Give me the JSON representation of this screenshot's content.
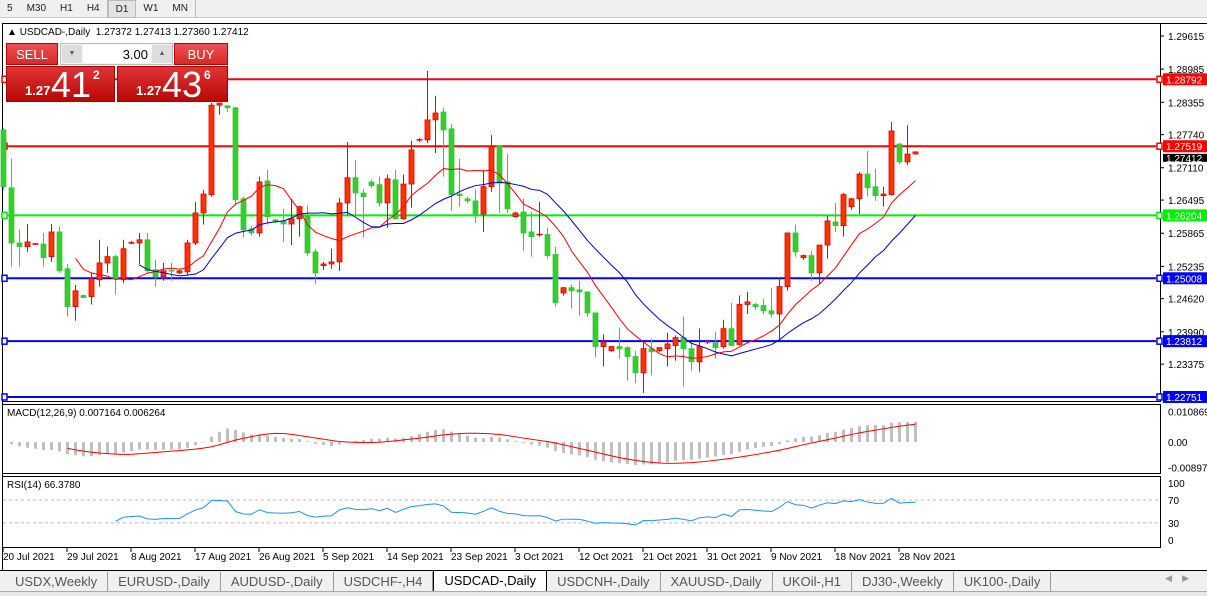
{
  "toolbar": {
    "timeframes": [
      "5",
      "M30",
      "H1",
      "H4",
      "D1",
      "W1",
      "MN"
    ],
    "active": "D1"
  },
  "chart": {
    "header": "USDCAD-,Daily  1.27372 1.27413 1.27360 1.27412",
    "trade": {
      "sell_label": "SELL",
      "buy_label": "BUY",
      "lot": "3.00",
      "sell": {
        "prefix": "1.27",
        "big": "41",
        "pip": "2"
      },
      "buy": {
        "prefix": "1.27",
        "big": "43",
        "pip": "6"
      }
    },
    "colors": {
      "up": "#ff3300",
      "down": "#33cc33",
      "ma_fast": "#ff0000",
      "ma_slow": "#0000cc",
      "rsi": "#1e90ff",
      "macd_hist": "#c0c0c0",
      "macd_signal": "#ff0000"
    }
  },
  "chart_data": {
    "type": "candlestick",
    "symbol": "USDCAD-",
    "timeframe": "Daily",
    "price_ticks": [
      "1.29615",
      "1.28985",
      "1.28355",
      "1.27740",
      "1.27110",
      "1.26495",
      "1.25865",
      "1.25235",
      "1.24620",
      "1.23990",
      "1.23375"
    ],
    "ylim": [
      1.2262,
      1.301
    ],
    "current_price": "1.27412",
    "levels": [
      {
        "price": "1.28792",
        "color": "#ff0000"
      },
      {
        "price": "1.27519",
        "color": "#ff0000"
      },
      {
        "price": "1.26204",
        "color": "#00ee00"
      },
      {
        "price": "1.25008",
        "color": "#0000ff"
      },
      {
        "price": "1.23812",
        "color": "#0000ff"
      },
      {
        "price": "1.22751",
        "color": "#0000ff"
      }
    ],
    "date_labels": [
      "20 Jul 2021",
      "29 Jul 2021",
      "8 Aug 2021",
      "17 Aug 2021",
      "26 Aug 2021",
      "5 Sep 2021",
      "14 Sep 2021",
      "23 Sep 2021",
      "3 Oct 2021",
      "12 Oct 2021",
      "21 Oct 2021",
      "31 Oct 2021",
      "9 Nov 2021",
      "18 Nov 2021",
      "28 Nov 2021"
    ],
    "ohlc": [
      [
        1.2783,
        1.2787,
        1.2669,
        1.2675
      ],
      [
        1.2673,
        1.2728,
        1.2523,
        1.2568
      ],
      [
        1.2568,
        1.2593,
        1.2523,
        1.2561
      ],
      [
        1.2561,
        1.2604,
        1.2551,
        1.257
      ],
      [
        1.2566,
        1.2568,
        1.2564,
        1.2566
      ],
      [
        1.2566,
        1.2587,
        1.2523,
        1.254
      ],
      [
        1.2542,
        1.2604,
        1.2532,
        1.2589
      ],
      [
        1.2589,
        1.2599,
        1.2511,
        1.2515
      ],
      [
        1.2519,
        1.2528,
        1.2428,
        1.2447
      ],
      [
        1.2447,
        1.2488,
        1.242,
        1.2477
      ],
      [
        1.2468,
        1.247,
        1.2464,
        1.2464
      ],
      [
        1.2466,
        1.2511,
        1.2451,
        1.25
      ],
      [
        1.2498,
        1.2574,
        1.2485,
        1.253
      ],
      [
        1.253,
        1.2561,
        1.2511,
        1.2542
      ],
      [
        1.2542,
        1.2545,
        1.247,
        1.25
      ],
      [
        1.2498,
        1.2574,
        1.2492,
        1.2557
      ],
      [
        1.2568,
        1.2572,
        1.2566,
        1.2568
      ],
      [
        1.2568,
        1.2587,
        1.2527,
        1.2574
      ],
      [
        1.2574,
        1.2587,
        1.2511,
        1.2515
      ],
      [
        1.2517,
        1.2536,
        1.2485,
        1.2504
      ],
      [
        1.2504,
        1.253,
        1.2496,
        1.2515
      ],
      [
        1.2515,
        1.253,
        1.2496,
        1.2513
      ],
      [
        1.2511,
        1.2517,
        1.2509,
        1.2515
      ],
      [
        1.2513,
        1.2574,
        1.2507,
        1.2568
      ],
      [
        1.2568,
        1.2646,
        1.2564,
        1.2625
      ],
      [
        1.2625,
        1.2669,
        1.2603,
        1.2661
      ],
      [
        1.266,
        1.2834,
        1.2656,
        1.283
      ],
      [
        1.283,
        1.2834,
        1.2812,
        1.2834
      ],
      [
        1.2829,
        1.2829,
        1.2817,
        1.2825
      ],
      [
        1.2825,
        1.2827,
        1.2639,
        1.265
      ],
      [
        1.2652,
        1.2656,
        1.2578,
        1.2593
      ],
      [
        1.2595,
        1.2601,
        1.2582,
        1.2587
      ],
      [
        1.2587,
        1.2694,
        1.258,
        1.2684
      ],
      [
        1.2686,
        1.2707,
        1.2603,
        1.2618
      ],
      [
        1.2612,
        1.2614,
        1.2606,
        1.2608
      ],
      [
        1.261,
        1.2633,
        1.257,
        1.2604
      ],
      [
        1.2604,
        1.2652,
        1.2564,
        1.2614
      ],
      [
        1.2614,
        1.2639,
        1.258,
        1.2637
      ],
      [
        1.2621,
        1.264,
        1.2544,
        1.2549
      ],
      [
        1.2551,
        1.2557,
        1.249,
        1.2511
      ],
      [
        1.2525,
        1.2532,
        1.2517,
        1.2528
      ],
      [
        1.2528,
        1.2557,
        1.2519,
        1.2532
      ],
      [
        1.2532,
        1.2654,
        1.2515,
        1.2644
      ],
      [
        1.2644,
        1.276,
        1.2621,
        1.2692
      ],
      [
        1.2692,
        1.2726,
        1.2621,
        1.2663
      ],
      [
        1.2663,
        1.2671,
        1.2578,
        1.2656
      ],
      [
        1.2684,
        1.2688,
        1.2673,
        1.2677
      ],
      [
        1.2679,
        1.2694,
        1.2637,
        1.2644
      ],
      [
        1.2644,
        1.2698,
        1.2597,
        1.269
      ],
      [
        1.2688,
        1.2707,
        1.2614,
        1.2614
      ],
      [
        1.2614,
        1.2698,
        1.2612,
        1.268
      ],
      [
        1.268,
        1.2762,
        1.2635,
        1.2745
      ],
      [
        1.2764,
        1.2768,
        1.276,
        1.2764
      ],
      [
        1.2764,
        1.2895,
        1.2758,
        1.2802
      ],
      [
        1.2802,
        1.2848,
        1.2739,
        1.2815
      ],
      [
        1.2817,
        1.2825,
        1.2694,
        1.2783
      ],
      [
        1.2785,
        1.2794,
        1.2629,
        1.266
      ],
      [
        1.2661,
        1.2728,
        1.2637,
        1.2658
      ],
      [
        1.2652,
        1.2656,
        1.2644,
        1.2648
      ],
      [
        1.2648,
        1.2669,
        1.2606,
        1.2623
      ],
      [
        1.2623,
        1.2705,
        1.2589,
        1.2675
      ],
      [
        1.2675,
        1.2773,
        1.2665,
        1.2751
      ],
      [
        1.2753,
        1.2754,
        1.2625,
        1.2682
      ],
      [
        1.2684,
        1.2737,
        1.2625,
        1.2633
      ],
      [
        1.2618,
        1.2627,
        1.2616,
        1.2625
      ],
      [
        1.2627,
        1.2652,
        1.2553,
        1.2587
      ],
      [
        1.2589,
        1.2627,
        1.2542,
        1.258
      ],
      [
        1.2582,
        1.2646,
        1.258,
        1.2584
      ],
      [
        1.2584,
        1.2597,
        1.2538,
        1.2544
      ],
      [
        1.2546,
        1.2561,
        1.2447,
        1.2454
      ],
      [
        1.2473,
        1.2483,
        1.2468,
        1.2483
      ],
      [
        1.2483,
        1.2489,
        1.2443,
        1.2477
      ],
      [
        1.2479,
        1.2496,
        1.243,
        1.2475
      ],
      [
        1.2475,
        1.2475,
        1.2428,
        1.2435
      ],
      [
        1.2435,
        1.2435,
        1.235,
        1.2371
      ],
      [
        1.2371,
        1.2394,
        1.2333,
        1.238
      ],
      [
        1.2363,
        1.2371,
        1.2361,
        1.2371
      ],
      [
        1.2371,
        1.2407,
        1.2348,
        1.2367
      ],
      [
        1.2369,
        1.2371,
        1.2306,
        1.2352
      ],
      [
        1.2352,
        1.2363,
        1.2302,
        1.2321
      ],
      [
        1.2321,
        1.238,
        1.2283,
        1.2367
      ],
      [
        1.2367,
        1.2386,
        1.2316,
        1.2361
      ],
      [
        1.2363,
        1.2369,
        1.2361,
        1.2369
      ],
      [
        1.2367,
        1.2397,
        1.2333,
        1.2376
      ],
      [
        1.2373,
        1.2392,
        1.2344,
        1.2388
      ],
      [
        1.2388,
        1.2428,
        1.2295,
        1.2367
      ],
      [
        1.2367,
        1.2378,
        1.2325,
        1.2342
      ],
      [
        1.2342,
        1.2405,
        1.2323,
        1.2371
      ],
      [
        1.238,
        1.2384,
        1.2376,
        1.238
      ],
      [
        1.2378,
        1.2399,
        1.2348,
        1.2369
      ],
      [
        1.2371,
        1.2422,
        1.2367,
        1.2405
      ],
      [
        1.2405,
        1.2454,
        1.2373,
        1.2373
      ],
      [
        1.2375,
        1.2468,
        1.2373,
        1.2451
      ],
      [
        1.2451,
        1.2475,
        1.2433,
        1.2456
      ],
      [
        1.2451,
        1.2454,
        1.2441,
        1.2447
      ],
      [
        1.2449,
        1.2462,
        1.2433,
        1.2439
      ],
      [
        1.2439,
        1.2483,
        1.2426,
        1.2433
      ],
      [
        1.2433,
        1.2502,
        1.2384,
        1.2485
      ],
      [
        1.2485,
        1.2587,
        1.2477,
        1.2587
      ],
      [
        1.2587,
        1.2603,
        1.2542,
        1.2551
      ],
      [
        1.254,
        1.2546,
        1.2536,
        1.2544
      ],
      [
        1.2544,
        1.2553,
        1.2496,
        1.2511
      ],
      [
        1.2511,
        1.2564,
        1.249,
        1.2564
      ],
      [
        1.2564,
        1.262,
        1.2538,
        1.261
      ],
      [
        1.2608,
        1.2644,
        1.2589,
        1.2601
      ],
      [
        1.2601,
        1.2663,
        1.258,
        1.266
      ],
      [
        1.2637,
        1.2654,
        1.2631,
        1.2652
      ],
      [
        1.2652,
        1.2703,
        1.2623,
        1.2699
      ],
      [
        1.2699,
        1.2743,
        1.2656,
        1.2673
      ],
      [
        1.2675,
        1.2709,
        1.2648,
        1.2658
      ],
      [
        1.2658,
        1.2675,
        1.2637,
        1.2661
      ],
      [
        1.266,
        1.2798,
        1.2658,
        1.2781
      ],
      [
        1.2756,
        1.2758,
        1.2718,
        1.2722
      ],
      [
        1.2722,
        1.2792,
        1.2716,
        1.2737
      ],
      [
        1.27372,
        1.27413,
        1.2736,
        1.27412
      ]
    ],
    "macd": {
      "label": "MACD(12,26,9) 0.007164 0.006264",
      "ticks": [
        "0.010869",
        "0.00",
        "-0.008974"
      ],
      "range": [
        -0.008974,
        0.010869
      ]
    },
    "rsi": {
      "label": "RSI(14) 66.3780",
      "ticks": [
        "100",
        "70",
        "30",
        "0"
      ],
      "levels": [
        70,
        30
      ]
    }
  },
  "tabs": {
    "items": [
      "USDX,Weekly",
      "EURUSD-,Daily",
      "AUDUSD-,Daily",
      "USDCHF-,H4",
      "USDCAD-,Daily",
      "USDCNH-,Daily",
      "XAUUSD-,Daily",
      "UKOil-,H1",
      "DJ30-,Weekly",
      "UK100-,Daily"
    ],
    "active": 4
  }
}
